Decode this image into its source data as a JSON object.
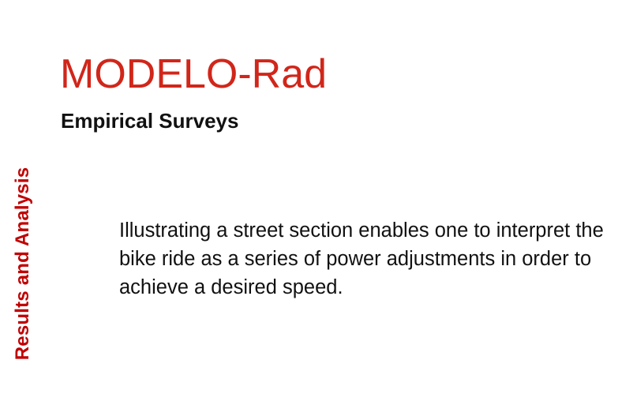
{
  "slide": {
    "side_label": "Results and Analysis",
    "title": "MODELO-Rad",
    "subtitle": "Empirical Surveys",
    "body": "Illustrating a street section enables one to interpret the bike ride as a series of power adjustments in order to achieve a desired speed.",
    "colors": {
      "title": "#d1261a",
      "side_label": "#c00000",
      "text": "#111111",
      "background": "#ffffff"
    }
  }
}
